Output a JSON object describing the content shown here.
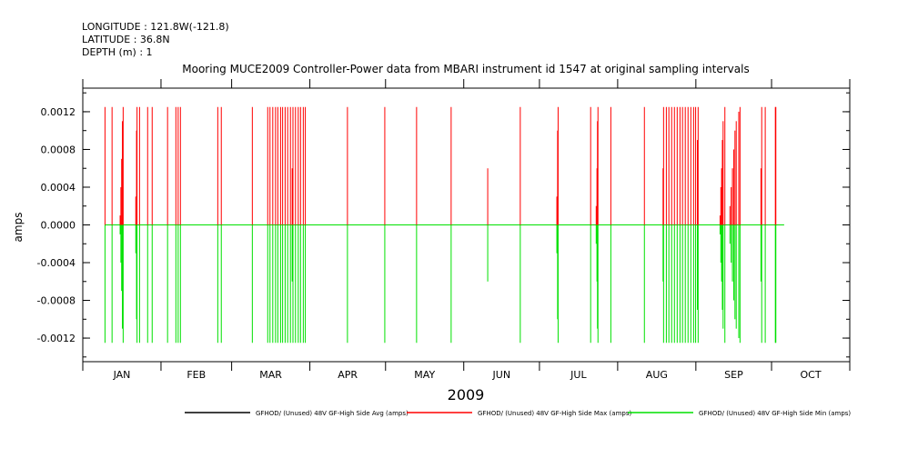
{
  "header": {
    "longitude": "LONGITUDE : 121.8W(-121.8)",
    "latitude": "LATITUDE : 36.8N",
    "depth": "DEPTH (m) : 1"
  },
  "chart_data": {
    "type": "line",
    "title": "Mooring MUCE2009 Controller-Power data from MBARI instrument id 1547 at original sampling intervals",
    "xlabel": "2009",
    "ylabel": "amps",
    "x_unit": "day of year 2009",
    "xlim": [
      0,
      304
    ],
    "ylim": [
      -0.00145,
      0.00145
    ],
    "yticks": [
      0.0012,
      0.0008,
      0.0004,
      0.0,
      -0.0004,
      -0.0008,
      -0.0012
    ],
    "ytick_labels": [
      "0.0012",
      "0.0008",
      "0.0004",
      "0.0000",
      "-0.0004",
      "-0.0008",
      "-0.0012"
    ],
    "month_labels": [
      "JAN",
      "FEB",
      "MAR",
      "APR",
      "MAY",
      "JUN",
      "JUL",
      "AUG",
      "SEP",
      "OCT"
    ],
    "month_starts": [
      0,
      31,
      59,
      90,
      120,
      151,
      181,
      212,
      243,
      273,
      304
    ],
    "grid": false,
    "legend_position": "bottom",
    "series": [
      {
        "name": "GFHOD/ (Unused) 48V GF-High Side Avg (amps)",
        "color": "#000000",
        "baseline": 0.0,
        "x_range": [
          8.8,
          278
        ]
      },
      {
        "name": "GFHOD/ (Unused) 48V GF-High Side Max (amps)",
        "color": "#ff0000"
      },
      {
        "name": "GFHOD/ (Unused) 48V GF-High Side Min (amps)",
        "color": "#00e000"
      }
    ],
    "spikes_note": "each spike: [day, max_amps, min_amps]",
    "spikes": [
      [
        8.8,
        0.00125,
        -0.00125
      ],
      [
        11.6,
        0.00125,
        -0.00125
      ],
      [
        14.8,
        0.0001,
        -0.0001
      ],
      [
        15.1,
        0.0004,
        -0.0004
      ],
      [
        15.4,
        0.0007,
        -0.0007
      ],
      [
        15.7,
        0.0011,
        -0.0011
      ],
      [
        16.0,
        0.00125,
        -0.00125
      ],
      [
        21.0,
        0.0003,
        -0.0003
      ],
      [
        21.3,
        0.001,
        -0.001
      ],
      [
        21.5,
        0.00125,
        -0.00125
      ],
      [
        22.5,
        0.00125,
        -0.00125
      ],
      [
        25.7,
        0.00125,
        -0.00125
      ],
      [
        27.5,
        0.00125,
        -0.00125
      ],
      [
        33.6,
        0.00125,
        -0.00125
      ],
      [
        36.9,
        0.00125,
        -0.00125
      ],
      [
        37.8,
        0.00125,
        -0.00125
      ],
      [
        38.7,
        0.00125,
        -0.00125
      ],
      [
        53.5,
        0.00125,
        -0.00125
      ],
      [
        54.9,
        0.00125,
        -0.00125
      ],
      [
        67.2,
        0.00125,
        -0.00125
      ],
      [
        73.3,
        0.00125,
        -0.00125
      ],
      [
        74.2,
        0.00125,
        -0.00125
      ],
      [
        75.3,
        0.00125,
        -0.00125
      ],
      [
        76.4,
        0.00125,
        -0.00125
      ],
      [
        77.3,
        0.00125,
        -0.00125
      ],
      [
        78.4,
        0.00125,
        -0.00125
      ],
      [
        79.2,
        0.00125,
        -0.00125
      ],
      [
        80.2,
        0.00125,
        -0.00125
      ],
      [
        81.2,
        0.00125,
        -0.00125
      ],
      [
        82.3,
        0.00125,
        -0.00125
      ],
      [
        83.0,
        0.0006,
        -0.0006
      ],
      [
        83.3,
        0.00125,
        -0.00125
      ],
      [
        84.3,
        0.00125,
        -0.00125
      ],
      [
        85.4,
        0.00125,
        -0.00125
      ],
      [
        86.3,
        0.00125,
        -0.00125
      ],
      [
        87.4,
        0.00125,
        -0.00125
      ],
      [
        88.2,
        0.00125,
        -0.00125
      ],
      [
        104.9,
        0.00125,
        -0.00125
      ],
      [
        119.7,
        0.00125,
        -0.00125
      ],
      [
        132.3,
        0.00125,
        -0.00125
      ],
      [
        146.0,
        0.00125,
        -0.00125
      ],
      [
        160.5,
        0.0006,
        -0.0006
      ],
      [
        173.4,
        0.00125,
        -0.00125
      ],
      [
        187.9,
        0.0003,
        -0.0003
      ],
      [
        188.2,
        0.001,
        -0.001
      ],
      [
        188.4,
        0.00125,
        -0.00125
      ],
      [
        201.3,
        0.00125,
        -0.00125
      ],
      [
        203.5,
        0.0002,
        -0.0002
      ],
      [
        203.8,
        0.0006,
        -0.0006
      ],
      [
        204.0,
        0.0011,
        -0.0011
      ],
      [
        204.2,
        0.00125,
        -0.00125
      ],
      [
        209.3,
        0.00125,
        -0.00125
      ],
      [
        222.6,
        0.00125,
        -0.00125
      ],
      [
        230.0,
        0.0006,
        -0.0006
      ],
      [
        230.2,
        0.00125,
        -0.00125
      ],
      [
        231.3,
        0.00125,
        -0.00125
      ],
      [
        232.3,
        0.00125,
        -0.00125
      ],
      [
        233.4,
        0.00125,
        -0.00125
      ],
      [
        234.5,
        0.00125,
        -0.00125
      ],
      [
        235.6,
        0.00125,
        -0.00125
      ],
      [
        236.7,
        0.00125,
        -0.00125
      ],
      [
        237.7,
        0.00125,
        -0.00125
      ],
      [
        238.8,
        0.00125,
        -0.00125
      ],
      [
        239.9,
        0.00125,
        -0.00125
      ],
      [
        241.0,
        0.00125,
        -0.00125
      ],
      [
        242.1,
        0.00125,
        -0.00125
      ],
      [
        242.9,
        0.00125,
        -0.00125
      ],
      [
        243.6,
        0.0009,
        -0.0009
      ],
      [
        243.9,
        0.00125,
        -0.00125
      ],
      [
        252.6,
        0.0001,
        -0.0001
      ],
      [
        252.9,
        0.0004,
        -0.0004
      ],
      [
        253.2,
        0.0006,
        -0.0006
      ],
      [
        253.5,
        0.0009,
        -0.0009
      ],
      [
        253.8,
        0.0011,
        -0.0011
      ],
      [
        254.5,
        0.00125,
        -0.00125
      ],
      [
        256.5,
        0.0002,
        -0.0002
      ],
      [
        257.0,
        0.0004,
        -0.0004
      ],
      [
        257.5,
        0.0006,
        -0.0006
      ],
      [
        258.0,
        0.0008,
        -0.0008
      ],
      [
        258.5,
        0.001,
        -0.001
      ],
      [
        259.0,
        0.0011,
        -0.0011
      ],
      [
        260.0,
        0.0012,
        -0.0012
      ],
      [
        260.5,
        0.00125,
        -0.00125
      ],
      [
        268.8,
        0.0006,
        -0.0006
      ],
      [
        269.1,
        0.00125,
        -0.00125
      ],
      [
        270.5,
        0.00125,
        -0.00125
      ],
      [
        274.5,
        0.00125,
        -0.00125
      ],
      [
        274.7,
        0.00125,
        -0.00125
      ]
    ]
  }
}
